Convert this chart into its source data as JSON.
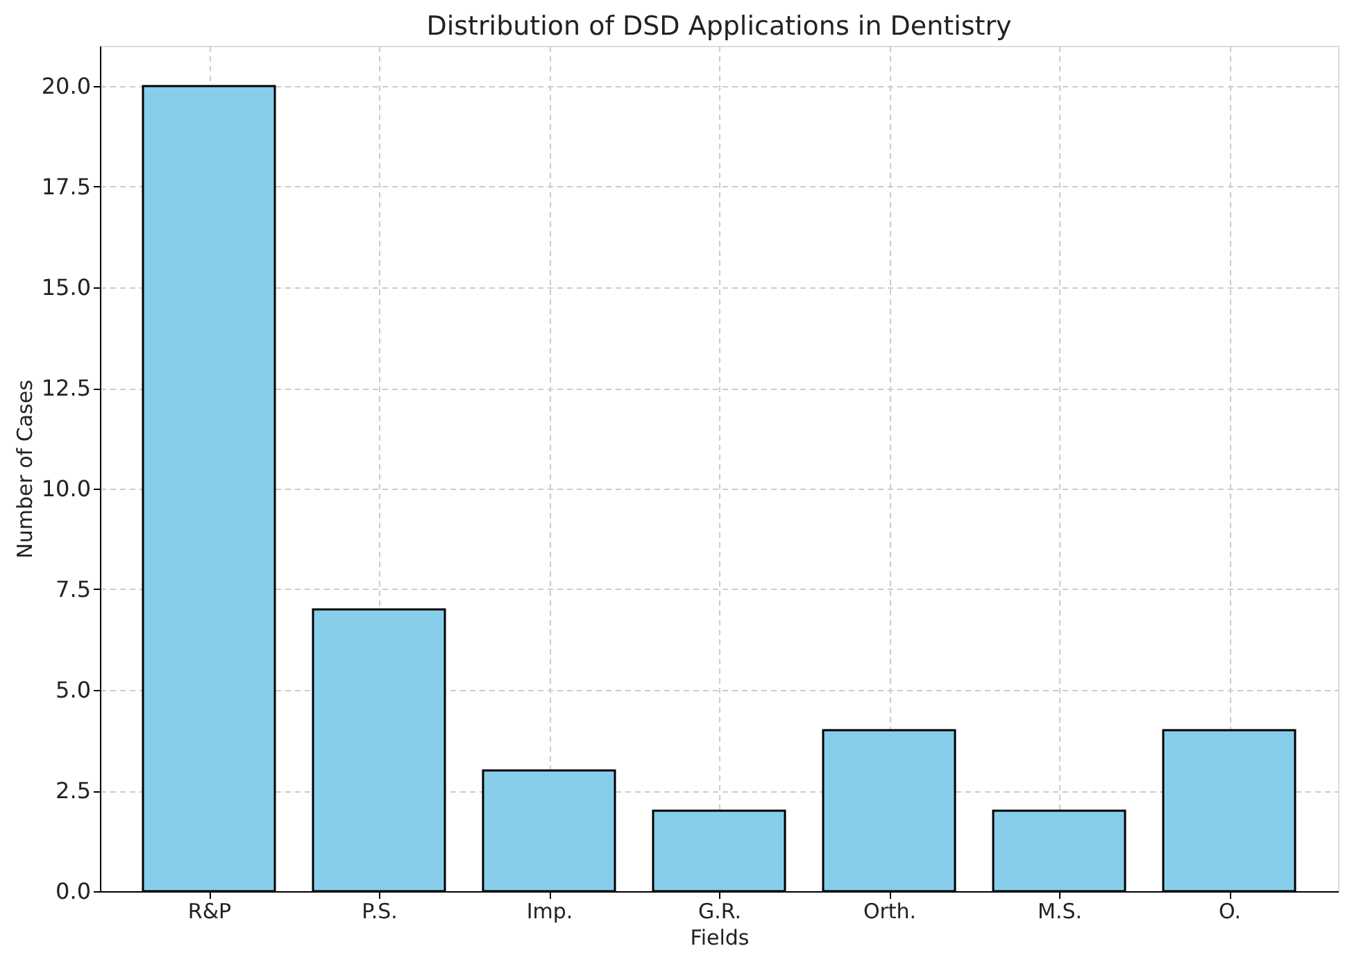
{
  "chart_data": {
    "type": "bar",
    "title": "Distribution of DSD Applications in Dentistry",
    "xlabel": "Fields",
    "ylabel": "Number of Cases",
    "categories": [
      "R&P",
      "P.S.",
      "Imp.",
      "G.R.",
      "Orth.",
      "M.S.",
      "O."
    ],
    "values": [
      20,
      7,
      3,
      2,
      4,
      2,
      4
    ],
    "color": "#87ceeb",
    "ylim": [
      0,
      21
    ],
    "yticks": [
      {
        "value": 0,
        "label": "0.0"
      },
      {
        "value": 2.5,
        "label": "2.5"
      },
      {
        "value": 5,
        "label": "5.0"
      },
      {
        "value": 7.5,
        "label": "7.5"
      },
      {
        "value": 10,
        "label": "10.0"
      },
      {
        "value": 12.5,
        "label": "12.5"
      },
      {
        "value": 15,
        "label": "15.0"
      },
      {
        "value": 17.5,
        "label": "17.5"
      },
      {
        "value": 20,
        "label": "20.0"
      }
    ],
    "grid": true
  }
}
